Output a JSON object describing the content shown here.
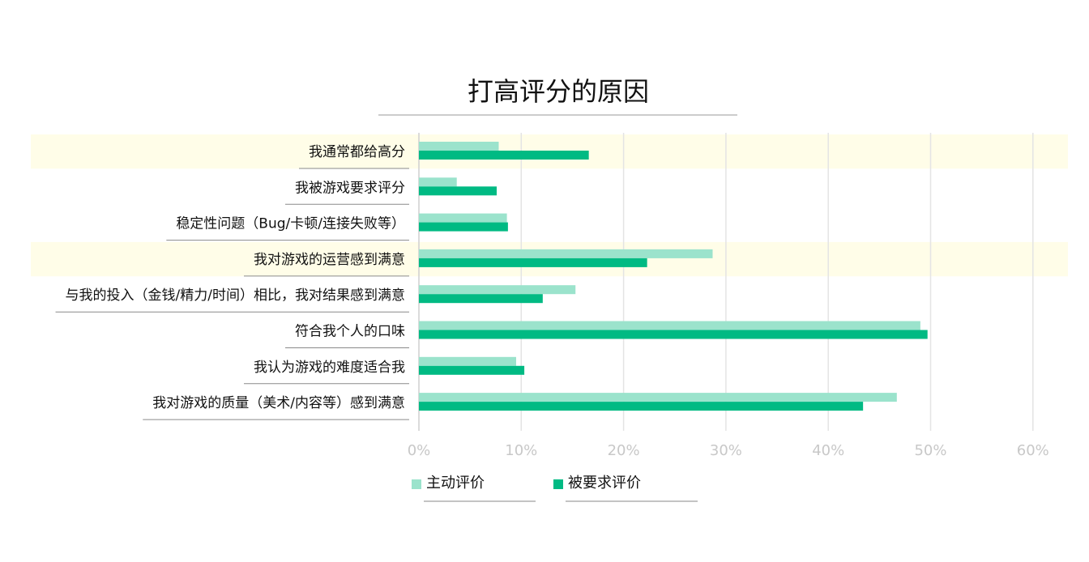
{
  "chart_data": {
    "type": "bar",
    "orientation": "horizontal",
    "title": "打高评分的原因",
    "categories": [
      "我通常都给高分",
      "我被游戏要求评分",
      "稳定性问题（Bug/卡顿/连接失败等）",
      "我对游戏的运营感到满意",
      "与我的投入（金钱/精力/时间）相比，我对结果感到满意",
      "符合我个人的口味",
      "我认为游戏的难度适合我",
      "我对游戏的质量（美术/内容等）感到满意"
    ],
    "series": [
      {
        "name": "主动评价",
        "color": "#9be3cc",
        "values": [
          7.8,
          3.7,
          8.6,
          28.7,
          15.3,
          49.0,
          9.5,
          46.7
        ]
      },
      {
        "name": "被要求评价",
        "color": "#00ba83",
        "values": [
          16.6,
          7.6,
          8.7,
          22.3,
          12.1,
          49.7,
          10.3,
          43.4
        ]
      }
    ],
    "highlighted_categories": [
      0,
      3
    ],
    "highlight_color": "#fffde8",
    "xlim": [
      0,
      63
    ],
    "xticks": [
      "0%",
      "10%",
      "20%",
      "30%",
      "40%",
      "50%",
      "60%"
    ],
    "grid": true,
    "legend_position": "bottom"
  }
}
